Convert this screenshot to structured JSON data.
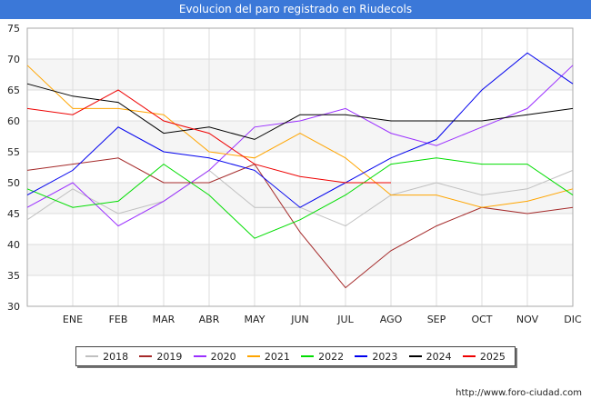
{
  "title": "Evolucion del paro registrado en Riudecols",
  "footer": "http://www.foro-ciudad.com",
  "chart_data": {
    "type": "line",
    "title": "Evolucion del paro registrado en Riudecols",
    "categories": [
      "",
      "ENE",
      "FEB",
      "MAR",
      "ABR",
      "MAY",
      "JUN",
      "JUL",
      "AGO",
      "SEP",
      "OCT",
      "NOV",
      "DIC"
    ],
    "y_ticks": [
      30,
      35,
      40,
      45,
      50,
      55,
      60,
      65,
      70,
      75
    ],
    "ylim": [
      30,
      75
    ],
    "grid": true,
    "legend_position": "bottom",
    "series": [
      {
        "name": "2018",
        "color": "#c0c0c0",
        "values": [
          44,
          49,
          45,
          47,
          52,
          46,
          46,
          43,
          48,
          50,
          48,
          49,
          52
        ]
      },
      {
        "name": "2019",
        "color": "#a52a2a",
        "values": [
          52,
          53,
          54,
          50,
          50,
          53,
          42,
          33,
          39,
          43,
          46,
          45,
          46
        ]
      },
      {
        "name": "2020",
        "color": "#9b30ff",
        "values": [
          46,
          50,
          43,
          47,
          52,
          59,
          60,
          62,
          58,
          56,
          59,
          62,
          69
        ]
      },
      {
        "name": "2021",
        "color": "#ffa500",
        "values": [
          69,
          62,
          62,
          61,
          55,
          54,
          58,
          54,
          48,
          48,
          46,
          47,
          49
        ]
      },
      {
        "name": "2022",
        "color": "#00dd00",
        "values": [
          49,
          46,
          47,
          53,
          48,
          41,
          44,
          48,
          53,
          54,
          53,
          53,
          48
        ]
      },
      {
        "name": "2023",
        "color": "#0000ee",
        "values": [
          48,
          52,
          59,
          55,
          54,
          52,
          46,
          50,
          54,
          57,
          65,
          71,
          66
        ]
      },
      {
        "name": "2024",
        "color": "#000000",
        "values": [
          66,
          64,
          63,
          58,
          59,
          57,
          61,
          61,
          60,
          60,
          60,
          61,
          62
        ]
      },
      {
        "name": "2025",
        "color": "#ee0000",
        "values": [
          62,
          61,
          65,
          60,
          58,
          53,
          51,
          50,
          50,
          null,
          null,
          null,
          null
        ]
      }
    ]
  }
}
